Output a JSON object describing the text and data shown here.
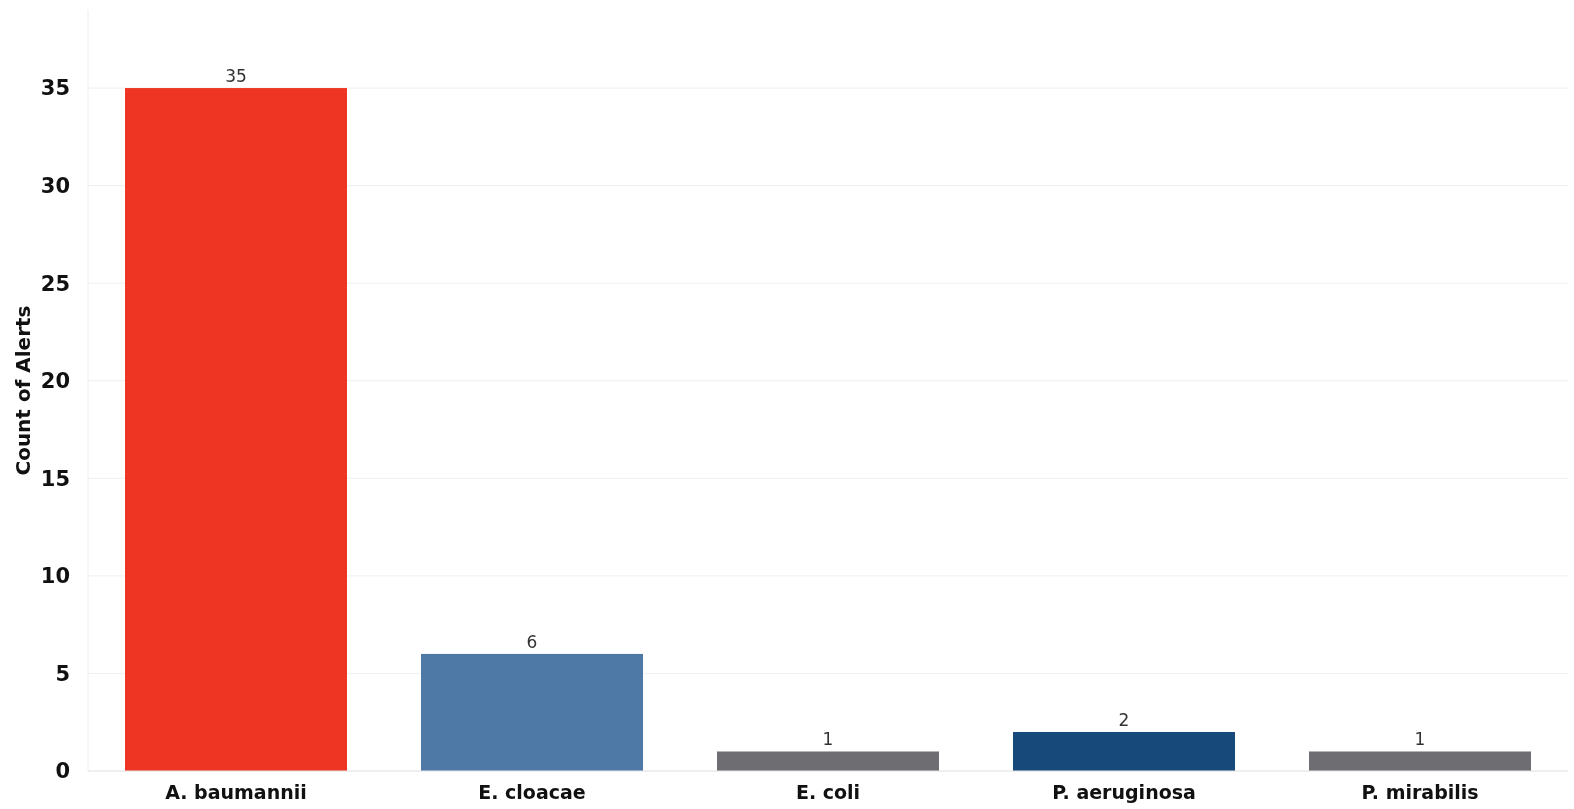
{
  "chart_data": {
    "type": "bar",
    "ylabel": "Count of Alerts",
    "categories": [
      "A. baumannii",
      "E. cloacae",
      "E. coli",
      "P. aeruginosa",
      "P. mirabilis"
    ],
    "values": [
      35,
      6,
      1,
      2,
      1
    ],
    "colors": [
      "#ee3524",
      "#4e79a7",
      "#6e6e72",
      "#17497a",
      "#6e6e72"
    ],
    "ylim": [
      0,
      39
    ],
    "yticks": [
      0,
      5,
      10,
      15,
      20,
      25,
      30,
      35
    ],
    "grid": "y",
    "data_labels": true
  }
}
